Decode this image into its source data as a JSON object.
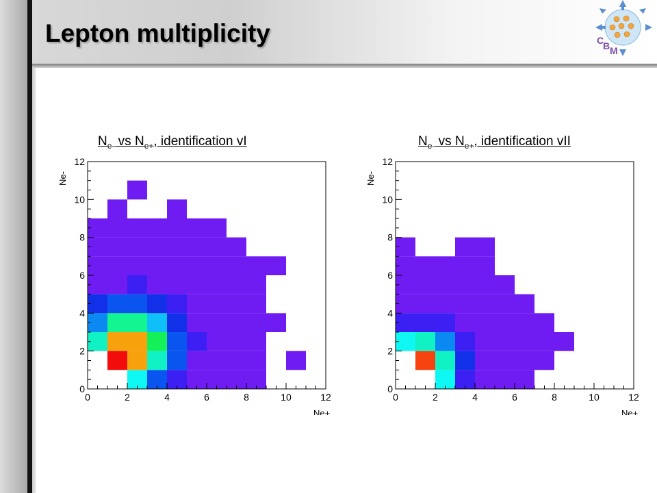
{
  "slide": {
    "title": "Lepton multiplicity"
  },
  "logo": {
    "letters": [
      "C",
      "B",
      "M"
    ]
  },
  "panels": [
    {
      "title_parts": [
        "N",
        "e-",
        " vs N",
        "e+",
        ", identification vI"
      ]
    },
    {
      "title_parts": [
        "N",
        "e-",
        " vs N",
        "e+",
        ", identification vII"
      ]
    }
  ],
  "colors": {
    "violet": "#6f1cf2",
    "blue_violet": "#3b1ff3",
    "blue": "#1130e8",
    "mid_blue": "#0a55f0",
    "azure": "#0b89f2",
    "sky": "#0fbff7",
    "cyan": "#0ef7f2",
    "aqua_green": "#11f2c4",
    "teal_green": "#12f590",
    "green": "#14f058",
    "orange": "#f7a10c",
    "orange_red": "#f5420e",
    "red": "#f20c0c"
  },
  "chart_data": [
    {
      "type": "heatmap",
      "title": "N e- vs N e+, identification vI",
      "xlabel": "Ne+",
      "ylabel": "Ne-",
      "xlim": [
        0,
        12
      ],
      "ylim": [
        0,
        12
      ],
      "xticks": [
        "0",
        "2",
        "4",
        "6",
        "8",
        "10",
        "12"
      ],
      "yticks": [
        "0",
        "2",
        "4",
        "6",
        "8",
        "10",
        "12"
      ],
      "grid": false,
      "bin_width": 1,
      "cells": [
        {
          "x": 2,
          "y": 0,
          "color": "cyan"
        },
        {
          "x": 3,
          "y": 0,
          "color": "mid_blue"
        },
        {
          "x": 4,
          "y": 0,
          "color": "blue_violet"
        },
        {
          "x": 5,
          "y": 0,
          "color": "violet"
        },
        {
          "x": 6,
          "y": 0,
          "color": "violet"
        },
        {
          "x": 7,
          "y": 0,
          "color": "violet"
        },
        {
          "x": 8,
          "y": 0,
          "color": "violet"
        },
        {
          "x": 1,
          "y": 1,
          "color": "red"
        },
        {
          "x": 2,
          "y": 1,
          "color": "orange"
        },
        {
          "x": 3,
          "y": 1,
          "color": "aqua_green"
        },
        {
          "x": 4,
          "y": 1,
          "color": "mid_blue"
        },
        {
          "x": 5,
          "y": 1,
          "color": "violet"
        },
        {
          "x": 6,
          "y": 1,
          "color": "violet"
        },
        {
          "x": 7,
          "y": 1,
          "color": "violet"
        },
        {
          "x": 8,
          "y": 1,
          "color": "violet"
        },
        {
          "x": 10,
          "y": 1,
          "color": "violet"
        },
        {
          "x": 0,
          "y": 2,
          "color": "aqua_green"
        },
        {
          "x": 1,
          "y": 2,
          "color": "orange"
        },
        {
          "x": 2,
          "y": 2,
          "color": "orange"
        },
        {
          "x": 3,
          "y": 2,
          "color": "green"
        },
        {
          "x": 4,
          "y": 2,
          "color": "mid_blue"
        },
        {
          "x": 5,
          "y": 2,
          "color": "blue_violet"
        },
        {
          "x": 6,
          "y": 2,
          "color": "violet"
        },
        {
          "x": 7,
          "y": 2,
          "color": "violet"
        },
        {
          "x": 8,
          "y": 2,
          "color": "violet"
        },
        {
          "x": 0,
          "y": 3,
          "color": "azure"
        },
        {
          "x": 1,
          "y": 3,
          "color": "teal_green"
        },
        {
          "x": 2,
          "y": 3,
          "color": "teal_green"
        },
        {
          "x": 3,
          "y": 3,
          "color": "sky"
        },
        {
          "x": 4,
          "y": 3,
          "color": "blue"
        },
        {
          "x": 5,
          "y": 3,
          "color": "violet"
        },
        {
          "x": 6,
          "y": 3,
          "color": "violet"
        },
        {
          "x": 7,
          "y": 3,
          "color": "violet"
        },
        {
          "x": 8,
          "y": 3,
          "color": "violet"
        },
        {
          "x": 9,
          "y": 3,
          "color": "violet"
        },
        {
          "x": 0,
          "y": 4,
          "color": "blue"
        },
        {
          "x": 1,
          "y": 4,
          "color": "mid_blue"
        },
        {
          "x": 2,
          "y": 4,
          "color": "mid_blue"
        },
        {
          "x": 3,
          "y": 4,
          "color": "blue"
        },
        {
          "x": 4,
          "y": 4,
          "color": "blue_violet"
        },
        {
          "x": 5,
          "y": 4,
          "color": "violet"
        },
        {
          "x": 6,
          "y": 4,
          "color": "violet"
        },
        {
          "x": 7,
          "y": 4,
          "color": "violet"
        },
        {
          "x": 8,
          "y": 4,
          "color": "violet"
        },
        {
          "x": 0,
          "y": 5,
          "color": "violet"
        },
        {
          "x": 1,
          "y": 5,
          "color": "violet"
        },
        {
          "x": 2,
          "y": 5,
          "color": "blue_violet"
        },
        {
          "x": 3,
          "y": 5,
          "color": "violet"
        },
        {
          "x": 4,
          "y": 5,
          "color": "violet"
        },
        {
          "x": 5,
          "y": 5,
          "color": "violet"
        },
        {
          "x": 6,
          "y": 5,
          "color": "violet"
        },
        {
          "x": 7,
          "y": 5,
          "color": "violet"
        },
        {
          "x": 8,
          "y": 5,
          "color": "violet"
        },
        {
          "x": 0,
          "y": 6,
          "color": "violet"
        },
        {
          "x": 1,
          "y": 6,
          "color": "violet"
        },
        {
          "x": 2,
          "y": 6,
          "color": "violet"
        },
        {
          "x": 3,
          "y": 6,
          "color": "violet"
        },
        {
          "x": 4,
          "y": 6,
          "color": "violet"
        },
        {
          "x": 5,
          "y": 6,
          "color": "violet"
        },
        {
          "x": 6,
          "y": 6,
          "color": "violet"
        },
        {
          "x": 7,
          "y": 6,
          "color": "violet"
        },
        {
          "x": 8,
          "y": 6,
          "color": "violet"
        },
        {
          "x": 9,
          "y": 6,
          "color": "violet"
        },
        {
          "x": 0,
          "y": 7,
          "color": "violet"
        },
        {
          "x": 1,
          "y": 7,
          "color": "violet"
        },
        {
          "x": 2,
          "y": 7,
          "color": "violet"
        },
        {
          "x": 3,
          "y": 7,
          "color": "violet"
        },
        {
          "x": 4,
          "y": 7,
          "color": "violet"
        },
        {
          "x": 5,
          "y": 7,
          "color": "violet"
        },
        {
          "x": 6,
          "y": 7,
          "color": "violet"
        },
        {
          "x": 7,
          "y": 7,
          "color": "violet"
        },
        {
          "x": 0,
          "y": 8,
          "color": "violet"
        },
        {
          "x": 1,
          "y": 8,
          "color": "violet"
        },
        {
          "x": 2,
          "y": 8,
          "color": "violet"
        },
        {
          "x": 3,
          "y": 8,
          "color": "violet"
        },
        {
          "x": 4,
          "y": 8,
          "color": "violet"
        },
        {
          "x": 5,
          "y": 8,
          "color": "violet"
        },
        {
          "x": 6,
          "y": 8,
          "color": "violet"
        },
        {
          "x": 1,
          "y": 9,
          "color": "violet"
        },
        {
          "x": 4,
          "y": 9,
          "color": "violet"
        },
        {
          "x": 2,
          "y": 10,
          "color": "violet"
        }
      ]
    },
    {
      "type": "heatmap",
      "title": "N e- vs N e+, identification vII",
      "xlabel": "Ne+",
      "ylabel": "Ne-",
      "xlim": [
        0,
        12
      ],
      "ylim": [
        0,
        12
      ],
      "xticks": [
        "0",
        "2",
        "4",
        "6",
        "8",
        "10",
        "12"
      ],
      "yticks": [
        "0",
        "2",
        "4",
        "6",
        "8",
        "10",
        "12"
      ],
      "grid": false,
      "bin_width": 1,
      "cells": [
        {
          "x": 2,
          "y": 0,
          "color": "cyan"
        },
        {
          "x": 3,
          "y": 0,
          "color": "blue_violet"
        },
        {
          "x": 4,
          "y": 0,
          "color": "violet"
        },
        {
          "x": 5,
          "y": 0,
          "color": "violet"
        },
        {
          "x": 6,
          "y": 0,
          "color": "violet"
        },
        {
          "x": 1,
          "y": 1,
          "color": "orange_red"
        },
        {
          "x": 2,
          "y": 1,
          "color": "aqua_green"
        },
        {
          "x": 3,
          "y": 1,
          "color": "blue"
        },
        {
          "x": 4,
          "y": 1,
          "color": "violet"
        },
        {
          "x": 5,
          "y": 1,
          "color": "violet"
        },
        {
          "x": 6,
          "y": 1,
          "color": "violet"
        },
        {
          "x": 7,
          "y": 1,
          "color": "violet"
        },
        {
          "x": 0,
          "y": 2,
          "color": "cyan"
        },
        {
          "x": 1,
          "y": 2,
          "color": "aqua_green"
        },
        {
          "x": 2,
          "y": 2,
          "color": "azure"
        },
        {
          "x": 3,
          "y": 2,
          "color": "blue_violet"
        },
        {
          "x": 4,
          "y": 2,
          "color": "violet"
        },
        {
          "x": 5,
          "y": 2,
          "color": "violet"
        },
        {
          "x": 6,
          "y": 2,
          "color": "violet"
        },
        {
          "x": 7,
          "y": 2,
          "color": "violet"
        },
        {
          "x": 8,
          "y": 2,
          "color": "violet"
        },
        {
          "x": 0,
          "y": 3,
          "color": "blue_violet"
        },
        {
          "x": 1,
          "y": 3,
          "color": "blue_violet"
        },
        {
          "x": 2,
          "y": 3,
          "color": "blue_violet"
        },
        {
          "x": 3,
          "y": 3,
          "color": "violet"
        },
        {
          "x": 4,
          "y": 3,
          "color": "violet"
        },
        {
          "x": 5,
          "y": 3,
          "color": "violet"
        },
        {
          "x": 6,
          "y": 3,
          "color": "violet"
        },
        {
          "x": 7,
          "y": 3,
          "color": "violet"
        },
        {
          "x": 0,
          "y": 4,
          "color": "violet"
        },
        {
          "x": 1,
          "y": 4,
          "color": "violet"
        },
        {
          "x": 2,
          "y": 4,
          "color": "violet"
        },
        {
          "x": 3,
          "y": 4,
          "color": "violet"
        },
        {
          "x": 4,
          "y": 4,
          "color": "violet"
        },
        {
          "x": 5,
          "y": 4,
          "color": "violet"
        },
        {
          "x": 6,
          "y": 4,
          "color": "violet"
        },
        {
          "x": 0,
          "y": 5,
          "color": "violet"
        },
        {
          "x": 1,
          "y": 5,
          "color": "violet"
        },
        {
          "x": 2,
          "y": 5,
          "color": "violet"
        },
        {
          "x": 3,
          "y": 5,
          "color": "violet"
        },
        {
          "x": 4,
          "y": 5,
          "color": "violet"
        },
        {
          "x": 5,
          "y": 5,
          "color": "violet"
        },
        {
          "x": 0,
          "y": 6,
          "color": "violet"
        },
        {
          "x": 1,
          "y": 6,
          "color": "violet"
        },
        {
          "x": 2,
          "y": 6,
          "color": "violet"
        },
        {
          "x": 3,
          "y": 6,
          "color": "violet"
        },
        {
          "x": 4,
          "y": 6,
          "color": "violet"
        },
        {
          "x": 0,
          "y": 7,
          "color": "violet"
        },
        {
          "x": 3,
          "y": 7,
          "color": "violet"
        },
        {
          "x": 4,
          "y": 7,
          "color": "violet"
        }
      ]
    }
  ]
}
